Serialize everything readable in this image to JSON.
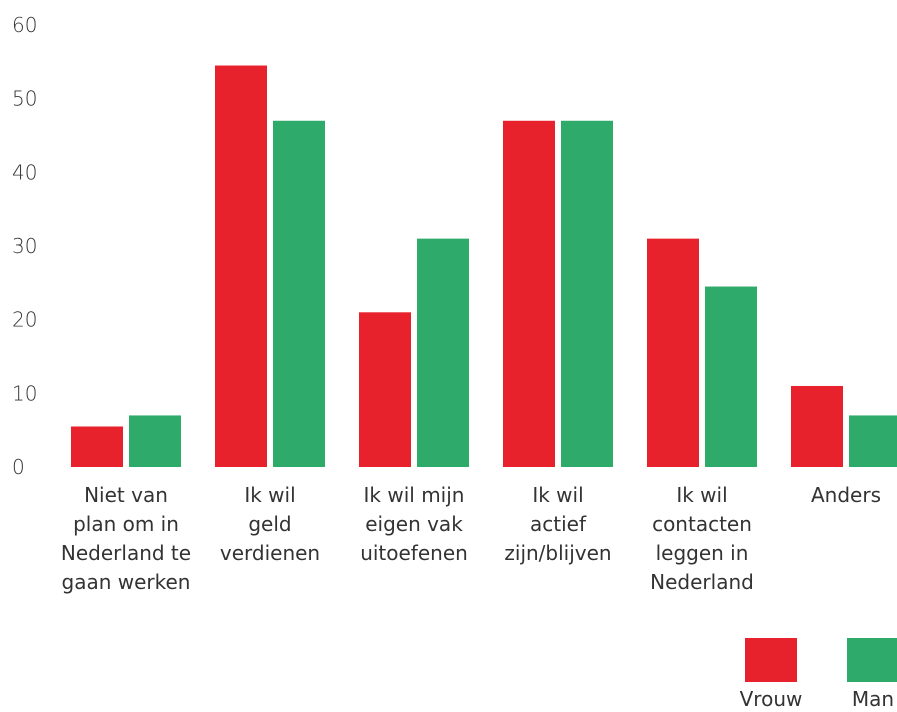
{
  "chart_data": {
    "type": "bar",
    "categories": [
      [
        "Niet van",
        "plan om in",
        "Nederland te",
        "gaan werken"
      ],
      [
        "Ik wil",
        "geld",
        "verdienen"
      ],
      [
        "Ik wil mijn",
        "eigen vak",
        "uitoefenen"
      ],
      [
        "Ik wil",
        "actief",
        "zijn/blijven"
      ],
      [
        "Ik wil",
        "contacten",
        "leggen in",
        "Nederland"
      ],
      [
        "Anders"
      ]
    ],
    "series": [
      {
        "name": "Vrouw",
        "color": "#e8222c",
        "values": [
          5.5,
          54.5,
          21,
          47,
          31,
          11
        ]
      },
      {
        "name": "Man",
        "color": "#2eaa6b",
        "values": [
          7,
          47,
          31,
          47,
          24.5,
          7
        ]
      }
    ],
    "ylim": [
      0,
      60
    ],
    "yticks": [
      0,
      10,
      20,
      30,
      40,
      50,
      60
    ],
    "grid": false,
    "legend": "bottom-right",
    "xlabel": "",
    "ylabel": "",
    "title": ""
  }
}
